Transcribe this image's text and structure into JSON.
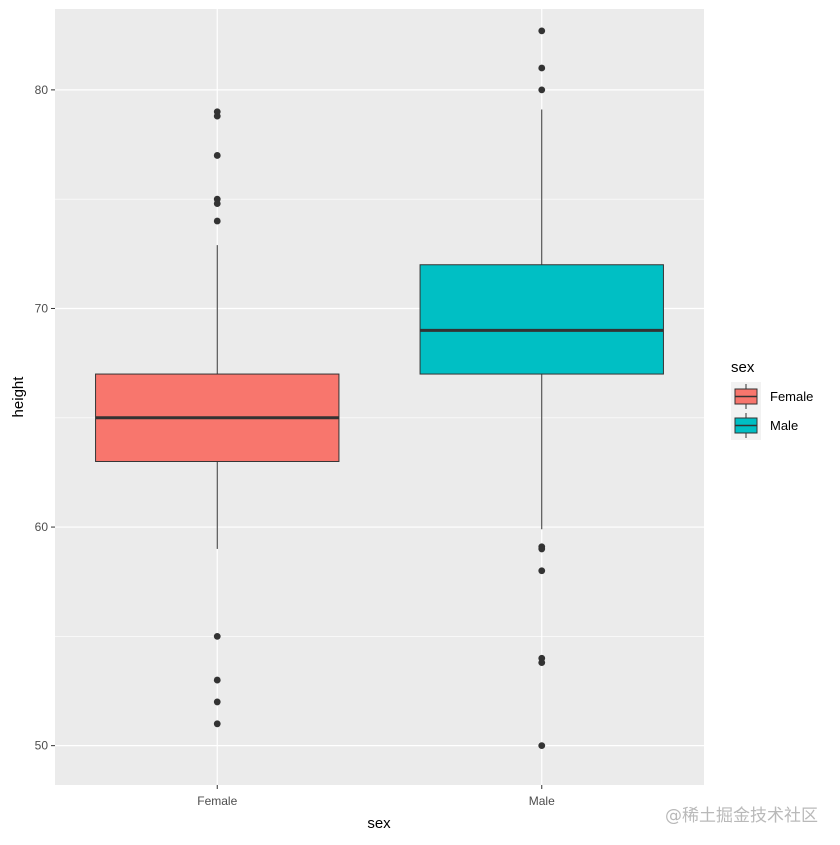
{
  "chart_data": {
    "type": "box",
    "xlabel": "sex",
    "ylabel": "height",
    "ylim": [
      48.2,
      83.7
    ],
    "y_ticks": [
      50,
      60,
      70,
      80
    ],
    "grid": true,
    "legend_position": "right",
    "legend": {
      "title": "sex",
      "entries": [
        {
          "label": "Female",
          "color": "#F8766D"
        },
        {
          "label": "Male",
          "color": "#00BFC4"
        }
      ]
    },
    "categories": [
      "Female",
      "Male"
    ],
    "boxes": [
      {
        "category": "Female",
        "color": "#F8766D",
        "whisker_low": 59,
        "q1": 63,
        "median": 65,
        "q3": 67,
        "whisker_high": 72.9,
        "outliers": [
          79,
          78.8,
          77,
          75,
          74.8,
          74,
          55,
          53,
          52,
          51
        ]
      },
      {
        "category": "Male",
        "color": "#00BFC4",
        "whisker_low": 59.9,
        "q1": 67,
        "median": 69,
        "q3": 72,
        "whisker_high": 79.1,
        "outliers": [
          82.7,
          81,
          80,
          59.1,
          59,
          58,
          54,
          53.8,
          50
        ]
      }
    ]
  },
  "colors": {
    "panel_background": "#EBEBEB",
    "grid": "#FFFFFF",
    "box_outline": "#333333"
  },
  "watermark": "@稀土掘金技术社区"
}
